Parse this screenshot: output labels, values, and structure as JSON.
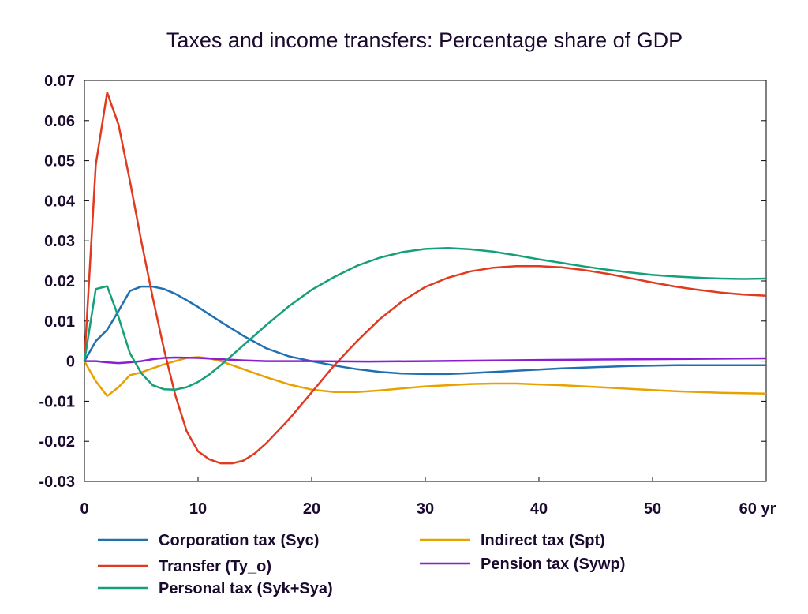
{
  "chart_data": {
    "type": "line",
    "title": "Taxes and income transfers: Percentage share of GDP",
    "xlabel": "",
    "ylabel": "",
    "x_unit_label": "yr",
    "xlim": [
      0,
      60
    ],
    "ylim": [
      -0.03,
      0.07
    ],
    "x_ticks": [
      0,
      10,
      20,
      30,
      40,
      50,
      60
    ],
    "x_tick_labels": [
      "0",
      "10",
      "20",
      "30",
      "40",
      "50",
      "60 yr"
    ],
    "y_ticks": [
      -0.03,
      -0.02,
      -0.01,
      0,
      0.01,
      0.02,
      0.03,
      0.04,
      0.05,
      0.06,
      0.07
    ],
    "y_tick_labels": [
      "-0.03",
      "-0.02",
      "-0.01",
      "0",
      "0.01",
      "0.02",
      "0.03",
      "0.04",
      "0.05",
      "0.06",
      "0.07"
    ],
    "grid": false,
    "legend_position": "bottom",
    "series": [
      {
        "name": "Corporation tax (Syc)",
        "color": "#1f6fb2",
        "points": [
          [
            0,
            0
          ],
          [
            1,
            0.005
          ],
          [
            2,
            0.0078
          ],
          [
            3,
            0.0125
          ],
          [
            4,
            0.0175
          ],
          [
            5,
            0.0186
          ],
          [
            6,
            0.0186
          ],
          [
            7,
            0.018
          ],
          [
            8,
            0.0168
          ],
          [
            9,
            0.0152
          ],
          [
            10,
            0.0135
          ],
          [
            12,
            0.0098
          ],
          [
            14,
            0.0063
          ],
          [
            16,
            0.0032
          ],
          [
            18,
            0.0012
          ],
          [
            20,
            0
          ],
          [
            22,
            -0.0011
          ],
          [
            24,
            -0.002
          ],
          [
            26,
            -0.0027
          ],
          [
            28,
            -0.0031
          ],
          [
            30,
            -0.0032
          ],
          [
            32,
            -0.0032
          ],
          [
            34,
            -0.003
          ],
          [
            36,
            -0.0027
          ],
          [
            38,
            -0.0024
          ],
          [
            40,
            -0.0021
          ],
          [
            42,
            -0.0018
          ],
          [
            44,
            -0.0016
          ],
          [
            46,
            -0.0014
          ],
          [
            48,
            -0.0012
          ],
          [
            50,
            -0.0011
          ],
          [
            52,
            -0.001
          ],
          [
            54,
            -0.001
          ],
          [
            56,
            -0.001
          ],
          [
            58,
            -0.001
          ],
          [
            60,
            -0.001
          ]
        ]
      },
      {
        "name": "Indirect tax (Spt)",
        "color": "#e8a200",
        "points": [
          [
            0,
            0
          ],
          [
            1,
            -0.005
          ],
          [
            2,
            -0.0087
          ],
          [
            3,
            -0.0065
          ],
          [
            4,
            -0.0035
          ],
          [
            5,
            -0.0028
          ],
          [
            6,
            -0.0018
          ],
          [
            7,
            -0.0008
          ],
          [
            8,
            0
          ],
          [
            9,
            0.0008
          ],
          [
            10,
            0.001
          ],
          [
            11,
            0.0007
          ],
          [
            12,
            0
          ],
          [
            13,
            -0.001
          ],
          [
            14,
            -0.002
          ],
          [
            16,
            -0.004
          ],
          [
            18,
            -0.0058
          ],
          [
            20,
            -0.0071
          ],
          [
            22,
            -0.0077
          ],
          [
            24,
            -0.0077
          ],
          [
            26,
            -0.0073
          ],
          [
            28,
            -0.0068
          ],
          [
            30,
            -0.0063
          ],
          [
            32,
            -0.006
          ],
          [
            34,
            -0.0057
          ],
          [
            36,
            -0.0056
          ],
          [
            38,
            -0.0056
          ],
          [
            40,
            -0.0058
          ],
          [
            42,
            -0.006
          ],
          [
            44,
            -0.0063
          ],
          [
            46,
            -0.0066
          ],
          [
            48,
            -0.0069
          ],
          [
            50,
            -0.0072
          ],
          [
            52,
            -0.0075
          ],
          [
            54,
            -0.0077
          ],
          [
            56,
            -0.0079
          ],
          [
            58,
            -0.008
          ],
          [
            60,
            -0.0081
          ]
        ]
      },
      {
        "name": "Transfer (Ty_o)",
        "color": "#e03a20",
        "points": [
          [
            0,
            0
          ],
          [
            1,
            0.049
          ],
          [
            2,
            0.067
          ],
          [
            3,
            0.059
          ],
          [
            4,
            0.045
          ],
          [
            5,
            0.03
          ],
          [
            6,
            0.016
          ],
          [
            7,
            0.003
          ],
          [
            8,
            -0.0085
          ],
          [
            9,
            -0.0175
          ],
          [
            10,
            -0.0225
          ],
          [
            11,
            -0.0245
          ],
          [
            12,
            -0.0255
          ],
          [
            13,
            -0.0255
          ],
          [
            14,
            -0.0248
          ],
          [
            15,
            -0.023
          ],
          [
            16,
            -0.0205
          ],
          [
            18,
            -0.0145
          ],
          [
            20,
            -0.0078
          ],
          [
            22,
            -0.001
          ],
          [
            24,
            0.005
          ],
          [
            26,
            0.0105
          ],
          [
            28,
            0.015
          ],
          [
            30,
            0.0185
          ],
          [
            32,
            0.0208
          ],
          [
            34,
            0.0224
          ],
          [
            36,
            0.0233
          ],
          [
            38,
            0.0237
          ],
          [
            40,
            0.0237
          ],
          [
            42,
            0.0234
          ],
          [
            44,
            0.0227
          ],
          [
            46,
            0.0218
          ],
          [
            48,
            0.0207
          ],
          [
            50,
            0.0196
          ],
          [
            52,
            0.0186
          ],
          [
            54,
            0.0178
          ],
          [
            56,
            0.0171
          ],
          [
            58,
            0.0166
          ],
          [
            60,
            0.0163
          ]
        ]
      },
      {
        "name": "Pension tax (Sywp)",
        "color": "#8a1fd1",
        "points": [
          [
            0,
            0
          ],
          [
            1,
            0
          ],
          [
            2,
            -0.0003
          ],
          [
            3,
            -0.0005
          ],
          [
            4,
            -0.0003
          ],
          [
            5,
            0
          ],
          [
            6,
            0.0005
          ],
          [
            7,
            0.0008
          ],
          [
            8,
            0.0009
          ],
          [
            10,
            0.0008
          ],
          [
            12,
            0.0005
          ],
          [
            14,
            0.0002
          ],
          [
            16,
            0
          ],
          [
            20,
            0
          ],
          [
            25,
            -0.0001
          ],
          [
            30,
            0
          ],
          [
            40,
            0.0003
          ],
          [
            50,
            0.0005
          ],
          [
            60,
            0.0007
          ]
        ]
      },
      {
        "name": "Personal tax (Syk+Sya)",
        "color": "#16a07a",
        "points": [
          [
            0,
            0
          ],
          [
            1,
            0.018
          ],
          [
            2,
            0.0187
          ],
          [
            3,
            0.011
          ],
          [
            4,
            0.002
          ],
          [
            5,
            -0.003
          ],
          [
            6,
            -0.006
          ],
          [
            7,
            -0.007
          ],
          [
            8,
            -0.0071
          ],
          [
            9,
            -0.0065
          ],
          [
            10,
            -0.0052
          ],
          [
            11,
            -0.0033
          ],
          [
            12,
            -0.001
          ],
          [
            13,
            0.0015
          ],
          [
            14,
            0.004
          ],
          [
            16,
            0.009
          ],
          [
            18,
            0.0137
          ],
          [
            20,
            0.0178
          ],
          [
            22,
            0.021
          ],
          [
            24,
            0.0238
          ],
          [
            26,
            0.0258
          ],
          [
            28,
            0.0272
          ],
          [
            30,
            0.028
          ],
          [
            32,
            0.0282
          ],
          [
            34,
            0.0279
          ],
          [
            36,
            0.0273
          ],
          [
            38,
            0.0264
          ],
          [
            40,
            0.0254
          ],
          [
            42,
            0.0245
          ],
          [
            44,
            0.0236
          ],
          [
            46,
            0.0228
          ],
          [
            48,
            0.0221
          ],
          [
            50,
            0.0215
          ],
          [
            52,
            0.0211
          ],
          [
            54,
            0.0208
          ],
          [
            56,
            0.0206
          ],
          [
            58,
            0.0205
          ],
          [
            60,
            0.0206
          ]
        ]
      }
    ]
  }
}
